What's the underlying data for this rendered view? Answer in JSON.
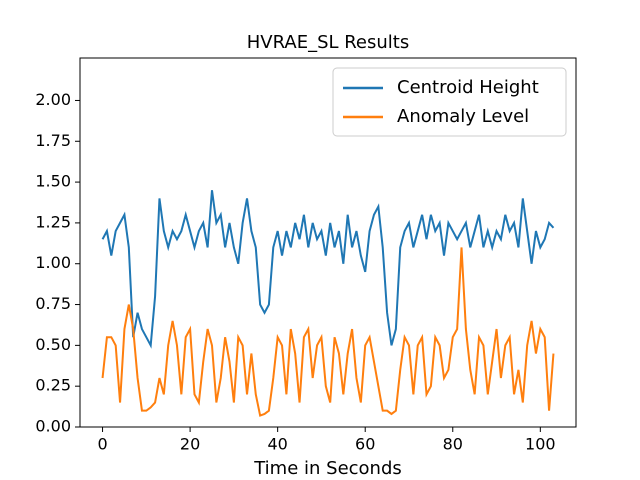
{
  "chart_data": {
    "type": "line",
    "title": "HVRAE_SL Results",
    "x_label": "Time in Seconds",
    "x": [
      0,
      1,
      2,
      3,
      4,
      5,
      6,
      7,
      8,
      9,
      10,
      11,
      12,
      13,
      14,
      15,
      16,
      17,
      18,
      19,
      20,
      21,
      22,
      23,
      24,
      25,
      26,
      27,
      28,
      29,
      30,
      31,
      32,
      33,
      34,
      35,
      36,
      37,
      38,
      39,
      40,
      41,
      42,
      43,
      44,
      45,
      46,
      47,
      48,
      49,
      50,
      51,
      52,
      53,
      54,
      55,
      56,
      57,
      58,
      59,
      60,
      61,
      62,
      63,
      64,
      65,
      66,
      67,
      68,
      69,
      70,
      71,
      72,
      73,
      74,
      75,
      76,
      77,
      78,
      79,
      80,
      81,
      82,
      83,
      84,
      85,
      86,
      87,
      88,
      89,
      90,
      91,
      92,
      93,
      94,
      95,
      96,
      97,
      98,
      99,
      100,
      101,
      102,
      103
    ],
    "series": [
      {
        "name": "Centroid Height",
        "color": "#1f77b4",
        "values": [
          1.15,
          1.2,
          1.05,
          1.2,
          1.25,
          1.3,
          1.1,
          0.55,
          0.7,
          0.6,
          0.55,
          0.5,
          0.8,
          1.4,
          1.2,
          1.1,
          1.2,
          1.15,
          1.2,
          1.3,
          1.2,
          1.1,
          1.2,
          1.25,
          1.1,
          1.45,
          1.25,
          1.3,
          1.1,
          1.25,
          1.1,
          1.0,
          1.25,
          1.4,
          1.2,
          1.1,
          0.75,
          0.7,
          0.75,
          1.1,
          1.2,
          1.05,
          1.2,
          1.1,
          1.25,
          1.15,
          1.3,
          1.1,
          1.25,
          1.15,
          1.2,
          1.05,
          1.25,
          1.1,
          1.2,
          1.0,
          1.3,
          1.1,
          1.2,
          1.05,
          0.95,
          1.2,
          1.3,
          1.35,
          1.1,
          0.7,
          0.5,
          0.6,
          1.1,
          1.2,
          1.25,
          1.1,
          1.2,
          1.3,
          1.15,
          1.3,
          1.2,
          1.25,
          1.05,
          1.25,
          1.2,
          1.15,
          1.2,
          1.25,
          1.1,
          1.2,
          1.3,
          1.1,
          1.2,
          1.1,
          1.2,
          1.15,
          1.3,
          1.2,
          1.25,
          1.1,
          1.4,
          1.2,
          1.0,
          1.2,
          1.1,
          1.15,
          1.25,
          1.22
        ]
      },
      {
        "name": "Anomaly Level",
        "color": "#ff7f0e",
        "values": [
          0.3,
          0.55,
          0.55,
          0.5,
          0.15,
          0.6,
          0.75,
          0.6,
          0.3,
          0.1,
          0.1,
          0.12,
          0.15,
          0.3,
          0.2,
          0.5,
          0.65,
          0.5,
          0.2,
          0.55,
          0.6,
          0.2,
          0.15,
          0.4,
          0.6,
          0.5,
          0.15,
          0.3,
          0.55,
          0.4,
          0.15,
          0.55,
          0.5,
          0.2,
          0.45,
          0.2,
          0.07,
          0.08,
          0.1,
          0.3,
          0.55,
          0.5,
          0.2,
          0.6,
          0.45,
          0.15,
          0.55,
          0.6,
          0.3,
          0.5,
          0.55,
          0.25,
          0.15,
          0.55,
          0.45,
          0.2,
          0.45,
          0.6,
          0.3,
          0.15,
          0.5,
          0.55,
          0.4,
          0.25,
          0.1,
          0.1,
          0.08,
          0.1,
          0.35,
          0.55,
          0.5,
          0.2,
          0.5,
          0.55,
          0.2,
          0.25,
          0.55,
          0.5,
          0.3,
          0.35,
          0.55,
          0.6,
          1.1,
          0.6,
          0.35,
          0.2,
          0.55,
          0.5,
          0.2,
          0.4,
          0.6,
          0.3,
          0.5,
          0.55,
          0.2,
          0.35,
          0.15,
          0.5,
          0.65,
          0.45,
          0.6,
          0.55,
          0.1,
          0.45
        ]
      }
    ],
    "xlim": [
      -5.15,
      108.15
    ],
    "ylim": [
      0,
      2.26
    ],
    "xticks": [
      0,
      20,
      40,
      60,
      80,
      100
    ],
    "yticks": [
      {
        "value": 0,
        "label": "0.00"
      },
      {
        "value": 0.25,
        "label": "0.25"
      },
      {
        "value": 0.5,
        "label": "0.50"
      },
      {
        "value": 0.75,
        "label": "0.75"
      },
      {
        "value": 1,
        "label": "1.00"
      },
      {
        "value": 1.25,
        "label": "1.25"
      },
      {
        "value": 1.5,
        "label": "1.50"
      },
      {
        "value": 1.75,
        "label": "1.75"
      },
      {
        "value": 2,
        "label": "2.00"
      }
    ],
    "legend": "upper right"
  }
}
